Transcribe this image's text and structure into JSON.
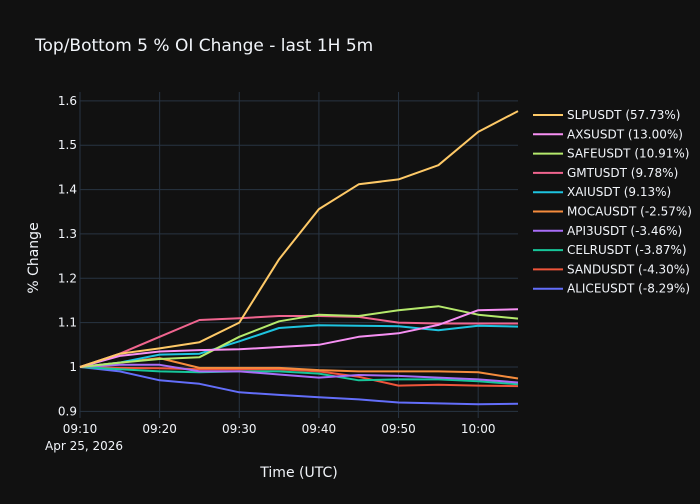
{
  "chart_data": {
    "type": "line",
    "title": "Top/Bottom 5 % OI Change - last 1H 5m",
    "xlabel": "Time (UTC)",
    "ylabel": "% Change",
    "x_ticks": [
      "09:10",
      "09:20",
      "09:30",
      "09:40",
      "09:50",
      "10:00"
    ],
    "x_tick_sublabel": "Apr 25, 2026",
    "x": [
      "09:10",
      "09:15",
      "09:20",
      "09:25",
      "09:30",
      "09:35",
      "09:40",
      "09:45",
      "09:50",
      "09:55",
      "10:00",
      "10:05"
    ],
    "xlim": [
      "09:10",
      "10:05"
    ],
    "ylim": [
      0.885,
      1.62
    ],
    "y_ticks": [
      0.9,
      1,
      1.1,
      1.2,
      1.3,
      1.4,
      1.5,
      1.6
    ],
    "y_tick_labels": [
      "0.9",
      "1",
      "1.1",
      "1.2",
      "1.3",
      "1.4",
      "1.5",
      "1.6"
    ],
    "grid": true,
    "legend_position": "right",
    "series": [
      {
        "name": "SLPUSDT (57.73%)",
        "color": "#fec967",
        "values": [
          1.0,
          1.03,
          1.042,
          1.056,
          1.1,
          1.243,
          1.356,
          1.412,
          1.423,
          1.455,
          1.53,
          1.577
        ]
      },
      {
        "name": "AXSUSDT (13.00%)",
        "color": "#f790f3",
        "values": [
          1.0,
          1.025,
          1.035,
          1.038,
          1.04,
          1.045,
          1.05,
          1.068,
          1.076,
          1.095,
          1.128,
          1.13
        ]
      },
      {
        "name": "SAFEUSDT (10.91%)",
        "color": "#b5e96c",
        "values": [
          1.0,
          1.01,
          1.018,
          1.022,
          1.068,
          1.103,
          1.118,
          1.115,
          1.128,
          1.137,
          1.118,
          1.109
        ]
      },
      {
        "name": "GMTUSDT (9.78%)",
        "color": "#f0658f",
        "values": [
          1.0,
          1.03,
          1.068,
          1.106,
          1.11,
          1.115,
          1.115,
          1.113,
          1.1,
          1.098,
          1.098,
          1.098
        ]
      },
      {
        "name": "XAIUSDT (9.13%)",
        "color": "#1ec4e0",
        "values": [
          1.0,
          1.01,
          1.028,
          1.03,
          1.058,
          1.088,
          1.094,
          1.093,
          1.092,
          1.083,
          1.093,
          1.091
        ]
      },
      {
        "name": "MOCAUSDT (-2.57%)",
        "color": "#f58c3d",
        "values": [
          1.0,
          1.01,
          1.02,
          0.998,
          0.998,
          0.998,
          0.993,
          0.99,
          0.99,
          0.99,
          0.988,
          0.974
        ]
      },
      {
        "name": "API3USDT (-3.46%)",
        "color": "#a86df7",
        "values": [
          1.0,
          1.005,
          1.005,
          0.99,
          0.99,
          0.983,
          0.976,
          0.982,
          0.98,
          0.976,
          0.972,
          0.965
        ]
      },
      {
        "name": "CELRUSDT (-3.87%)",
        "color": "#17c69a",
        "values": [
          1.0,
          0.995,
          0.99,
          0.988,
          0.99,
          0.99,
          0.985,
          0.97,
          0.972,
          0.972,
          0.968,
          0.961
        ]
      },
      {
        "name": "SANDUSDT (-4.30%)",
        "color": "#ef553b",
        "values": [
          1.0,
          0.998,
          0.997,
          0.995,
          0.995,
          0.995,
          0.99,
          0.978,
          0.958,
          0.96,
          0.958,
          0.957
        ]
      },
      {
        "name": "ALICEUSDT (-8.29%)",
        "color": "#636efa",
        "values": [
          1.0,
          0.99,
          0.97,
          0.962,
          0.943,
          0.937,
          0.932,
          0.927,
          0.92,
          0.918,
          0.916,
          0.917
        ]
      }
    ]
  },
  "colors": {
    "background": "#111111",
    "grid": "#283442",
    "text": "#f2f5fa",
    "zero_line": "#506784"
  }
}
